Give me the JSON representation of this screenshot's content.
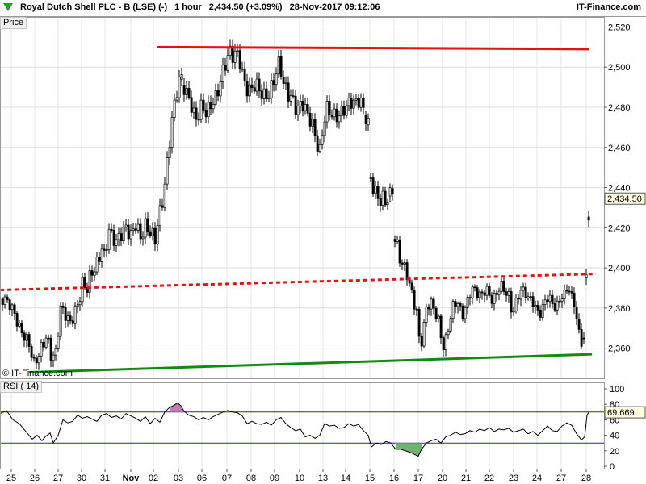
{
  "header": {
    "instrument": "Royal Dutch Shell PLC - B (LSE) (-)",
    "timeframe": "1 hour",
    "last": "2,434.50 (+3.09%)",
    "datetime": "28-Nov-2017 09:12:06",
    "brand": "IT-Finance.com"
  },
  "price_panel": {
    "label": "Price",
    "copyright": "© IT-Finance.com"
  },
  "rsi_panel": {
    "label": "RSI ( 14)"
  },
  "colors": {
    "up": "#ffffff",
    "down": "#000000",
    "resistance": "#e81010",
    "mid": "#e81010",
    "support": "#138a13",
    "rsi_line": "#000000",
    "rsi_over": "#c07fb0",
    "rsi_under": "#6fb36f",
    "rsi_band": "#2b2b7a"
  },
  "chart_data": [
    {
      "type": "candlestick",
      "title": "Royal Dutch Shell PLC - B (LSE) (-)",
      "ylim": [
        2345,
        2525
      ],
      "y_ticks": [
        2360,
        2380,
        2400,
        2420,
        2440,
        2460,
        2480,
        2500,
        2520
      ],
      "y_tick_labels": [
        "2,360",
        "2,380",
        "2,400",
        "2,420",
        "2,440",
        "2,460",
        "2,480",
        "2,500",
        "2,520"
      ],
      "x_ticks": [
        "25",
        "26",
        "27",
        "30",
        "31",
        "Nov",
        "02",
        "03",
        "06",
        "07",
        "08",
        "09",
        "10",
        "13",
        "14",
        "15",
        "16",
        "17",
        "20",
        "21",
        "22",
        "23",
        "24",
        "27",
        "28"
      ],
      "last_price": 2434.5,
      "last_price_label": "2,434.50",
      "path": [
        [
          0,
          2385
        ],
        [
          6,
          2384
        ],
        [
          12,
          2382
        ],
        [
          18,
          2377
        ],
        [
          24,
          2370
        ],
        [
          30,
          2366
        ],
        [
          36,
          2362
        ],
        [
          42,
          2352
        ],
        [
          48,
          2357
        ],
        [
          54,
          2363
        ],
        [
          58,
          2366
        ],
        [
          64,
          2355
        ],
        [
          70,
          2358
        ],
        [
          74,
          2380
        ],
        [
          80,
          2378
        ],
        [
          86,
          2372
        ],
        [
          92,
          2377
        ],
        [
          98,
          2384
        ],
        [
          102,
          2392
        ],
        [
          108,
          2390
        ],
        [
          112,
          2397
        ],
        [
          118,
          2400
        ],
        [
          122,
          2404
        ],
        [
          126,
          2410
        ],
        [
          130,
          2404
        ],
        [
          134,
          2420
        ],
        [
          138,
          2416
        ],
        [
          144,
          2413
        ],
        [
          150,
          2417
        ],
        [
          156,
          2420
        ],
        [
          162,
          2416
        ],
        [
          168,
          2422
        ],
        [
          174,
          2415
        ],
        [
          180,
          2421
        ],
        [
          186,
          2418
        ],
        [
          192,
          2414
        ],
        [
          196,
          2425
        ],
        [
          200,
          2430
        ],
        [
          204,
          2442
        ],
        [
          208,
          2455
        ],
        [
          212,
          2472
        ],
        [
          216,
          2481
        ],
        [
          220,
          2491
        ],
        [
          224,
          2496
        ],
        [
          228,
          2490
        ],
        [
          234,
          2484
        ],
        [
          238,
          2480
        ],
        [
          242,
          2473
        ],
        [
          246,
          2477
        ],
        [
          250,
          2481
        ],
        [
          256,
          2477
        ],
        [
          262,
          2482
        ],
        [
          268,
          2485
        ],
        [
          274,
          2495
        ],
        [
          280,
          2503
        ],
        [
          284,
          2508
        ],
        [
          288,
          2506
        ],
        [
          292,
          2507
        ],
        [
          296,
          2505
        ],
        [
          300,
          2497
        ],
        [
          304,
          2490
        ],
        [
          310,
          2488
        ],
        [
          316,
          2492
        ],
        [
          322,
          2488
        ],
        [
          328,
          2485
        ],
        [
          334,
          2487
        ],
        [
          340,
          2495
        ],
        [
          346,
          2503
        ],
        [
          350,
          2493
        ],
        [
          356,
          2487
        ],
        [
          362,
          2484
        ],
        [
          368,
          2478
        ],
        [
          374,
          2483
        ],
        [
          380,
          2477
        ],
        [
          384,
          2474
        ],
        [
          388,
          2470
        ],
        [
          392,
          2462
        ],
        [
          396,
          2458
        ],
        [
          400,
          2470
        ],
        [
          404,
          2480
        ],
        [
          410,
          2477
        ],
        [
          416,
          2475
        ],
        [
          422,
          2477
        ],
        [
          428,
          2480
        ],
        [
          434,
          2483
        ],
        [
          440,
          2482
        ],
        [
          446,
          2484
        ],
        [
          452,
          2476
        ],
        [
          456,
          2472
        ],
        [
          458,
          2446
        ],
        [
          462,
          2440
        ],
        [
          466,
          2437
        ],
        [
          470,
          2433
        ],
        [
          474,
          2435
        ],
        [
          478,
          2432
        ],
        [
          482,
          2436
        ],
        [
          486,
          2439
        ],
        [
          488,
          2415
        ],
        [
          492,
          2411
        ],
        [
          496,
          2403
        ],
        [
          500,
          2401
        ],
        [
          504,
          2397
        ],
        [
          508,
          2390
        ],
        [
          512,
          2384
        ],
        [
          516,
          2378
        ],
        [
          520,
          2360
        ],
        [
          524,
          2368
        ],
        [
          528,
          2380
        ],
        [
          532,
          2383
        ],
        [
          536,
          2381
        ],
        [
          540,
          2377
        ],
        [
          544,
          2372
        ],
        [
          548,
          2360
        ],
        [
          552,
          2364
        ],
        [
          556,
          2372
        ],
        [
          560,
          2380
        ],
        [
          566,
          2384
        ],
        [
          572,
          2376
        ],
        [
          578,
          2382
        ],
        [
          584,
          2390
        ],
        [
          590,
          2388
        ],
        [
          596,
          2386
        ],
        [
          602,
          2390
        ],
        [
          608,
          2384
        ],
        [
          614,
          2386
        ],
        [
          620,
          2392
        ],
        [
          624,
          2389
        ],
        [
          630,
          2386
        ],
        [
          634,
          2377
        ],
        [
          640,
          2384
        ],
        [
          646,
          2390
        ],
        [
          652,
          2386
        ],
        [
          658,
          2384
        ],
        [
          664,
          2380
        ],
        [
          668,
          2376
        ],
        [
          674,
          2383
        ],
        [
          680,
          2386
        ],
        [
          686,
          2380
        ],
        [
          692,
          2383
        ],
        [
          698,
          2387
        ],
        [
          704,
          2390
        ],
        [
          708,
          2386
        ],
        [
          712,
          2380
        ],
        [
          716,
          2370
        ],
        [
          720,
          2362
        ],
        [
          724,
          2366
        ],
        [
          727,
          2410
        ],
        [
          729,
          2425
        ],
        [
          731,
          2434
        ]
      ],
      "trendlines": [
        {
          "name": "resistance",
          "from": [
            195,
            2510
          ],
          "to": [
            730,
            2509
          ],
          "style": "solid"
        },
        {
          "name": "mid",
          "from": [
            0,
            2389
          ],
          "to": [
            738,
            2397
          ],
          "style": "dashed"
        },
        {
          "name": "support",
          "from": [
            36,
            2348
          ],
          "to": [
            733,
            2357
          ],
          "style": "solid"
        }
      ]
    },
    {
      "type": "line",
      "title": "RSI ( 14)",
      "ylim": [
        0,
        100
      ],
      "y_ticks": [
        0,
        20,
        40,
        60,
        80,
        100
      ],
      "y_tick_labels": [
        "0",
        "20",
        "40",
        "60",
        "80",
        "100"
      ],
      "bands": [
        70,
        30
      ],
      "last_value": 69.669,
      "last_value_label": "69.669",
      "series": [
        {
          "values": [
            [
              0,
              68
            ],
            [
              8,
              72
            ],
            [
              16,
              60
            ],
            [
              24,
              55
            ],
            [
              32,
              45
            ],
            [
              40,
              35
            ],
            [
              46,
              40
            ],
            [
              52,
              33
            ],
            [
              56,
              38
            ],
            [
              62,
              43
            ],
            [
              66,
              30
            ],
            [
              72,
              40
            ],
            [
              78,
              60
            ],
            [
              84,
              56
            ],
            [
              90,
              58
            ],
            [
              96,
              66
            ],
            [
              102,
              62
            ],
            [
              108,
              64
            ],
            [
              114,
              61
            ],
            [
              120,
              58
            ],
            [
              126,
              66
            ],
            [
              132,
              68
            ],
            [
              138,
              63
            ],
            [
              144,
              65
            ],
            [
              150,
              61
            ],
            [
              156,
              68
            ],
            [
              162,
              65
            ],
            [
              168,
              62
            ],
            [
              174,
              58
            ],
            [
              180,
              64
            ],
            [
              186,
              55
            ],
            [
              192,
              62
            ],
            [
              198,
              57
            ],
            [
              204,
              70
            ],
            [
              210,
              76
            ],
            [
              216,
              79
            ],
            [
              220,
              82
            ],
            [
              224,
              78
            ],
            [
              228,
              71
            ],
            [
              234,
              66
            ],
            [
              240,
              64
            ],
            [
              246,
              60
            ],
            [
              252,
              63
            ],
            [
              258,
              60
            ],
            [
              264,
              64
            ],
            [
              270,
              67
            ],
            [
              276,
              70
            ],
            [
              282,
              72
            ],
            [
              288,
              70
            ],
            [
              294,
              69
            ],
            [
              300,
              65
            ],
            [
              306,
              55
            ],
            [
              312,
              58
            ],
            [
              318,
              55
            ],
            [
              324,
              54
            ],
            [
              330,
              57
            ],
            [
              336,
              53
            ],
            [
              342,
              60
            ],
            [
              348,
              63
            ],
            [
              354,
              55
            ],
            [
              360,
              50
            ],
            [
              366,
              46
            ],
            [
              372,
              48
            ],
            [
              378,
              38
            ],
            [
              384,
              40
            ],
            [
              390,
              36
            ],
            [
              396,
              40
            ],
            [
              402,
              55
            ],
            [
              408,
              52
            ],
            [
              414,
              53
            ],
            [
              420,
              49
            ],
            [
              426,
              50
            ],
            [
              432,
              55
            ],
            [
              438,
              52
            ],
            [
              444,
              54
            ],
            [
              450,
              46
            ],
            [
              456,
              40
            ],
            [
              460,
              25
            ],
            [
              466,
              30
            ],
            [
              472,
              28
            ],
            [
              478,
              32
            ],
            [
              484,
              30
            ],
            [
              490,
              22
            ],
            [
              496,
              22
            ],
            [
              502,
              20
            ],
            [
              508,
              18
            ],
            [
              514,
              15
            ],
            [
              518,
              13
            ],
            [
              522,
              22
            ],
            [
              528,
              30
            ],
            [
              534,
              33
            ],
            [
              540,
              35
            ],
            [
              546,
              30
            ],
            [
              552,
              38
            ],
            [
              558,
              40
            ],
            [
              564,
              44
            ],
            [
              570,
              41
            ],
            [
              576,
              42
            ],
            [
              582,
              46
            ],
            [
              588,
              44
            ],
            [
              594,
              48
            ],
            [
              600,
              46
            ],
            [
              606,
              50
            ],
            [
              612,
              45
            ],
            [
              618,
              48
            ],
            [
              624,
              47
            ],
            [
              630,
              49
            ],
            [
              636,
              44
            ],
            [
              642,
              46
            ],
            [
              648,
              48
            ],
            [
              654,
              42
            ],
            [
              660,
              45
            ],
            [
              666,
              40
            ],
            [
              672,
              46
            ],
            [
              678,
              52
            ],
            [
              684,
              46
            ],
            [
              690,
              45
            ],
            [
              696,
              52
            ],
            [
              702,
              56
            ],
            [
              708,
              53
            ],
            [
              714,
              42
            ],
            [
              720,
              34
            ],
            [
              724,
              38
            ],
            [
              727,
              66
            ],
            [
              729,
              69.669
            ]
          ]
        }
      ]
    }
  ]
}
